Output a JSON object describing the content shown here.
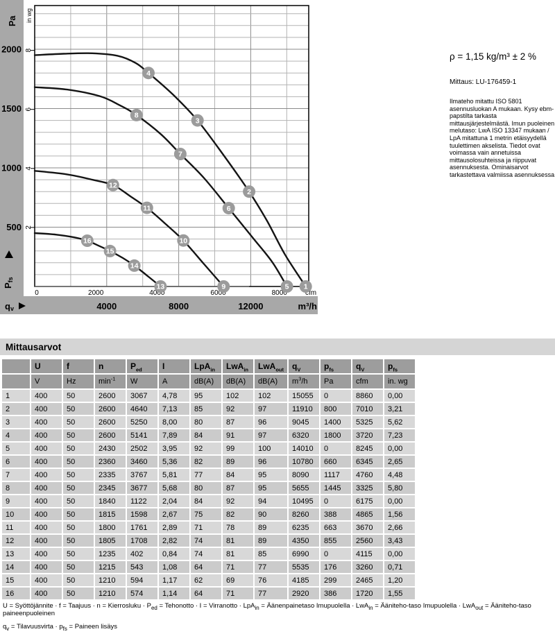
{
  "chart": {
    "pa_axis_title": "Pa",
    "inwg_axis_title": "in wg",
    "y_quantity_label": {
      "base": "P",
      "sub": "fs"
    },
    "x_quantity_label": {
      "base": "q",
      "sub": "v"
    },
    "cfm_unit": "cfm",
    "m3h_unit": "m³/h"
  },
  "chart_data": {
    "type": "line",
    "title": "Fan performance curves: pressure increase pfs vs. volume flow qv",
    "y_axis": {
      "label": "Pfs",
      "primary_unit": "Pa",
      "pa_ticks": [
        500,
        1000,
        1500,
        2000
      ],
      "pa_range": [
        0,
        2368
      ],
      "secondary_unit": "in wg",
      "inwg_ticks": [
        2,
        4,
        6,
        8
      ],
      "pa_per_inwg": 248.84
    },
    "x_axis": {
      "label": "qv",
      "primary_unit": "cfm",
      "cfm_ticks": [
        0,
        2000,
        4000,
        6000,
        8000
      ],
      "secondary_unit": "m³/h",
      "m3h_ticks": [
        4000,
        8000,
        12000
      ],
      "m3h_range": [
        0,
        15220
      ],
      "m3h_per_cfm": 1.699
    },
    "grid": {
      "pa_minor_step": 100,
      "pa_major_step": 500,
      "m3h_minor_step": 2000,
      "m3h_major_step": 4000
    },
    "fan_curves": [
      {
        "name": "speed-2600-min-1",
        "points_m3h_pa": [
          [
            0,
            1950
          ],
          [
            1600,
            1962
          ],
          [
            3200,
            1966
          ],
          [
            4600,
            1945
          ],
          [
            5600,
            1885
          ],
          [
            6320,
            1800
          ],
          [
            7700,
            1615
          ],
          [
            9045,
            1400
          ],
          [
            10500,
            1105
          ],
          [
            11910,
            800
          ],
          [
            12900,
            555
          ],
          [
            13900,
            270
          ],
          [
            15055,
            0
          ]
        ]
      },
      {
        "name": "speed-2430-min-1",
        "points_m3h_pa": [
          [
            0,
            1680
          ],
          [
            1800,
            1660
          ],
          [
            3600,
            1605
          ],
          [
            4700,
            1530
          ],
          [
            5655,
            1445
          ],
          [
            7000,
            1285
          ],
          [
            8090,
            1117
          ],
          [
            9400,
            915
          ],
          [
            10780,
            660
          ],
          [
            12200,
            395
          ],
          [
            13200,
            205
          ],
          [
            14010,
            0
          ]
        ]
      },
      {
        "name": "speed-1840-min-1",
        "points_m3h_pa": [
          [
            0,
            975
          ],
          [
            1800,
            945
          ],
          [
            3200,
            900
          ],
          [
            4350,
            855
          ],
          [
            5300,
            762
          ],
          [
            6235,
            663
          ],
          [
            7250,
            530
          ],
          [
            8260,
            388
          ],
          [
            9400,
            190
          ],
          [
            10495,
            0
          ]
        ]
      },
      {
        "name": "speed-1235-min-1",
        "points_m3h_pa": [
          [
            0,
            450
          ],
          [
            1200,
            437
          ],
          [
            2200,
            414
          ],
          [
            2920,
            386
          ],
          [
            3550,
            344
          ],
          [
            4185,
            299
          ],
          [
            4900,
            240
          ],
          [
            5535,
            176
          ],
          [
            6300,
            85
          ],
          [
            6990,
            0
          ]
        ]
      }
    ],
    "system_lines": [
      {
        "k_pa_per_m3h2": 4.52e-08,
        "q_end_m3h": 6320,
        "through_points": [
          16,
          12,
          8,
          4
        ]
      },
      {
        "k_pa_per_m3h2": 1.707e-08,
        "q_end_m3h": 9045,
        "through_points": [
          15,
          11,
          7,
          3
        ]
      },
      {
        "k_pa_per_m3h2": 5.7e-09,
        "q_end_m3h": 11910,
        "through_points": [
          14,
          10,
          6,
          2
        ]
      }
    ],
    "operating_points": [
      {
        "id": "1",
        "q_m3h": 15055,
        "p_pa": 0
      },
      {
        "id": "2",
        "q_m3h": 11910,
        "p_pa": 800
      },
      {
        "id": "3",
        "q_m3h": 9045,
        "p_pa": 1400
      },
      {
        "id": "4",
        "q_m3h": 6320,
        "p_pa": 1800
      },
      {
        "id": "5",
        "q_m3h": 14010,
        "p_pa": 0
      },
      {
        "id": "6",
        "q_m3h": 10780,
        "p_pa": 660
      },
      {
        "id": "7",
        "q_m3h": 8090,
        "p_pa": 1117
      },
      {
        "id": "8",
        "q_m3h": 5655,
        "p_pa": 1445
      },
      {
        "id": "9",
        "q_m3h": 10495,
        "p_pa": 0
      },
      {
        "id": "10",
        "q_m3h": 8260,
        "p_pa": 388
      },
      {
        "id": "11",
        "q_m3h": 6235,
        "p_pa": 663
      },
      {
        "id": "12",
        "q_m3h": 4350,
        "p_pa": 855
      },
      {
        "id": "13",
        "q_m3h": 6990,
        "p_pa": 0
      },
      {
        "id": "14",
        "q_m3h": 5535,
        "p_pa": 176
      },
      {
        "id": "15",
        "q_m3h": 4185,
        "p_pa": 299
      },
      {
        "id": "16",
        "q_m3h": 2920,
        "p_pa": 386
      }
    ]
  },
  "side_note": {
    "density": "ρ = 1,15 kg/m³ ± 2 %",
    "measurement": "Mittaus: LU-176459-1",
    "paragraph": "Ilmateho mitattu ISO 5801 asennusluokan A mukaan. Kysy ebm-papstilta tarkasta mittausjärjestelmästä. Imun puoleinen melutaso: LwA  ISO 13347 mukaan / LpA mitattuna 1 metrin etäisyydellä tuulettimen akselista. Tiedot ovat voimassa vain annetuissa mittausolosuhteissa ja riippuvat asennuksesta. Ominaisarvot tarkastettava valmiissa asennuksessa"
  },
  "table": {
    "title": "Mittausarvot",
    "headers": [
      "",
      "U",
      "f",
      "n",
      "P~ed~",
      "I",
      "LpA~in~",
      "LwA~in~",
      "LwA~out~",
      "q~V~",
      "p~fs~",
      "q~V~",
      "p~fs~"
    ],
    "units": [
      "",
      "V",
      "Hz",
      "min^-1^",
      "W",
      "A",
      "dB(A)",
      "dB(A)",
      "dB(A)",
      "m^3^/h",
      "Pa",
      "cfm",
      "in. wg"
    ],
    "rows": [
      [
        "1",
        "400",
        "50",
        "2600",
        "3067",
        "4,78",
        "95",
        "102",
        "102",
        "15055",
        "0",
        "8860",
        "0,00"
      ],
      [
        "2",
        "400",
        "50",
        "2600",
        "4640",
        "7,13",
        "85",
        "92",
        "97",
        "11910",
        "800",
        "7010",
        "3,21"
      ],
      [
        "3",
        "400",
        "50",
        "2600",
        "5250",
        "8,00",
        "80",
        "87",
        "96",
        "9045",
        "1400",
        "5325",
        "5,62"
      ],
      [
        "4",
        "400",
        "50",
        "2600",
        "5141",
        "7,89",
        "84",
        "91",
        "97",
        "6320",
        "1800",
        "3720",
        "7,23"
      ],
      [
        "5",
        "400",
        "50",
        "2430",
        "2502",
        "3,95",
        "92",
        "99",
        "100",
        "14010",
        "0",
        "8245",
        "0,00"
      ],
      [
        "6",
        "400",
        "50",
        "2360",
        "3460",
        "5,36",
        "82",
        "89",
        "96",
        "10780",
        "660",
        "6345",
        "2,65"
      ],
      [
        "7",
        "400",
        "50",
        "2335",
        "3767",
        "5,81",
        "77",
        "84",
        "95",
        "8090",
        "1117",
        "4760",
        "4,48"
      ],
      [
        "8",
        "400",
        "50",
        "2345",
        "3677",
        "5,68",
        "80",
        "87",
        "95",
        "5655",
        "1445",
        "3325",
        "5,80"
      ],
      [
        "9",
        "400",
        "50",
        "1840",
        "1122",
        "2,04",
        "84",
        "92",
        "94",
        "10495",
        "0",
        "6175",
        "0,00"
      ],
      [
        "10",
        "400",
        "50",
        "1815",
        "1598",
        "2,67",
        "75",
        "82",
        "90",
        "8260",
        "388",
        "4865",
        "1,56"
      ],
      [
        "11",
        "400",
        "50",
        "1800",
        "1761",
        "2,89",
        "71",
        "78",
        "89",
        "6235",
        "663",
        "3670",
        "2,66"
      ],
      [
        "12",
        "400",
        "50",
        "1805",
        "1708",
        "2,82",
        "74",
        "81",
        "89",
        "4350",
        "855",
        "2560",
        "3,43"
      ],
      [
        "13",
        "400",
        "50",
        "1235",
        "402",
        "0,84",
        "74",
        "81",
        "85",
        "6990",
        "0",
        "4115",
        "0,00"
      ],
      [
        "14",
        "400",
        "50",
        "1215",
        "543",
        "1,08",
        "64",
        "71",
        "77",
        "5535",
        "176",
        "3260",
        "0,71"
      ],
      [
        "15",
        "400",
        "50",
        "1210",
        "594",
        "1,17",
        "62",
        "69",
        "76",
        "4185",
        "299",
        "2465",
        "1,20"
      ],
      [
        "16",
        "400",
        "50",
        "1210",
        "574",
        "1,14",
        "64",
        "71",
        "77",
        "2920",
        "386",
        "1720",
        "1,55"
      ]
    ]
  },
  "footer": {
    "line1": "U = Syöttöjännite · f = Taajuus · n = Kierrosluku · P~ed~ = Tehonotto · I = Virranotto · LpA~in~ = Äänenpainetaso Imupuolella · LwA~in~ = Ääniteho-taso Imupuolella · LwA~out~ = Ääniteho-taso paineenpuoleinen",
    "line2": "q~v~ = Tilavuusvirta · p~fs~ = Paineen lisäys"
  },
  "colors": {
    "axis_band": "#a8a8a8",
    "grid_minor": "#b3b3b3",
    "grid_major": "#8a8a8a",
    "curve": "#141414",
    "system_line": "#6e6e6e",
    "marker_fill": "#9b9b9b",
    "marker_text": "#ffffff",
    "header_cell": "#9d9d9d",
    "row_light": "#d8d8d8",
    "row_dark": "#cbcbcb",
    "title_bar": "#d5d5d5"
  }
}
